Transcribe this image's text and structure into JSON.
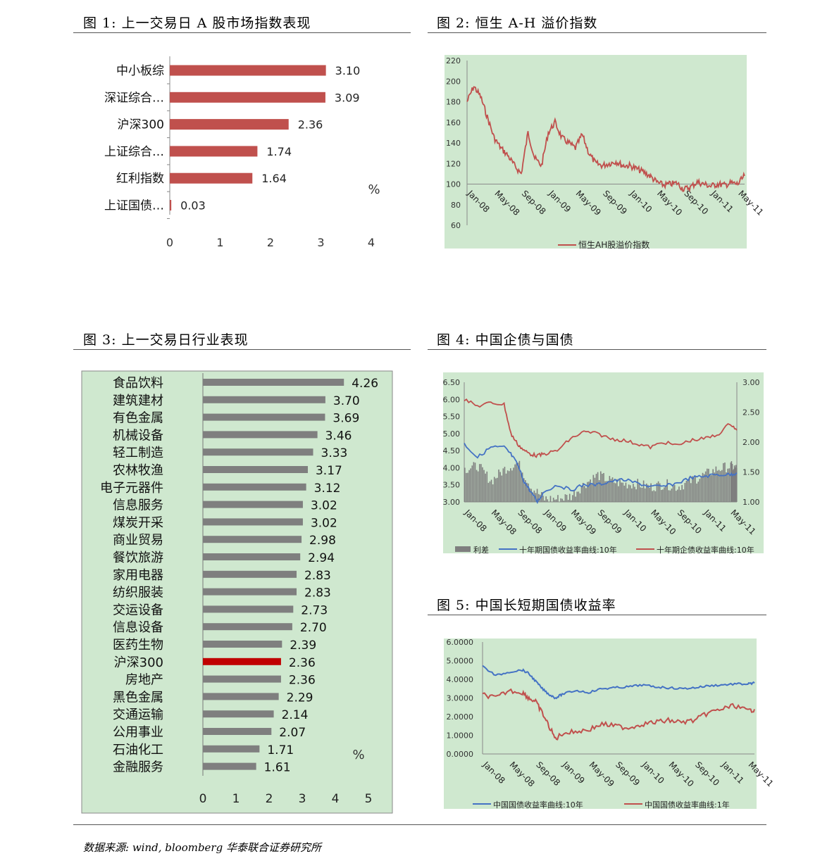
{
  "figures": {
    "fig1_title": "图 1: 上一交易日 A 股市场指数表现",
    "fig2_title": "图 2: 恒生 A-H 溢价指数",
    "fig3_title": "图 3: 上一交易日行业表现",
    "fig4_title": "图 4: 中国企债与国债",
    "fig5_title": "图 5: 中国长短期国债收益率"
  },
  "source": "数据来源: wind, bloomberg 华泰联合证券研究所",
  "colors": {
    "bar_red": "#c0504d",
    "bar_gray": "#7f7f7f",
    "highlight_red": "#c00000",
    "panel_green": "#cfe8cf",
    "line_blue": "#4472c4",
    "line_red": "#c0504d"
  },
  "chart_data": [
    {
      "id": "fig1",
      "type": "bar",
      "orientation": "horizontal",
      "categories": [
        "中小板综",
        "深证综合…",
        "沪深300",
        "上证综合…",
        "红利指数",
        "上证国债…"
      ],
      "values": [
        3.1,
        3.09,
        2.36,
        1.74,
        1.64,
        0.03
      ],
      "value_labels": [
        "3.10",
        "3.09",
        "2.36",
        "1.74",
        "1.64",
        "0.03"
      ],
      "unit": "%",
      "xlim": [
        0,
        4
      ],
      "xticks": [
        "0",
        "1",
        "2",
        "3",
        "4"
      ],
      "grid": false
    },
    {
      "id": "fig2",
      "type": "line",
      "x_ticks": [
        "Jan-08",
        "May-08",
        "Sep-08",
        "Jan-09",
        "May-09",
        "Sep-09",
        "Jan-10",
        "May-10",
        "Sep-10",
        "Jan-11",
        "May-11"
      ],
      "ylim": [
        60,
        220
      ],
      "yticks": [
        "60",
        "80",
        "100",
        "120",
        "140",
        "160",
        "180",
        "200",
        "220"
      ],
      "series": [
        {
          "name": "恒生AH股溢价指数",
          "x": [
            "Jan-08",
            "Feb-08",
            "Mar-08",
            "Apr-08",
            "May-08",
            "Jun-08",
            "Jul-08",
            "Aug-08",
            "Sep-08",
            "Oct-08",
            "Nov-08",
            "Dec-08",
            "Jan-09",
            "Feb-09",
            "Mar-09",
            "Apr-09",
            "May-09",
            "Jun-09",
            "Jul-09",
            "Aug-09",
            "Sep-09",
            "Oct-09",
            "Nov-09",
            "Dec-09",
            "Jan-10",
            "Feb-10",
            "Mar-10",
            "Apr-10",
            "May-10",
            "Jun-10",
            "Jul-10",
            "Aug-10",
            "Sep-10",
            "Oct-10",
            "Nov-10",
            "Dec-10",
            "Jan-11",
            "Feb-11",
            "Mar-11",
            "Apr-11",
            "May-11",
            "Jun-11"
          ],
          "values": [
            180,
            195,
            185,
            165,
            145,
            135,
            128,
            118,
            110,
            150,
            125,
            118,
            150,
            160,
            145,
            140,
            135,
            148,
            130,
            120,
            118,
            120,
            122,
            118,
            118,
            115,
            112,
            108,
            102,
            99,
            100,
            101,
            95,
            97,
            102,
            100,
            98,
            100,
            99,
            101,
            100,
            108
          ]
        }
      ],
      "legend": "bottom"
    },
    {
      "id": "fig3",
      "type": "bar",
      "orientation": "horizontal",
      "categories": [
        "食品饮料",
        "建筑建材",
        "有色金属",
        "机械设备",
        "轻工制造",
        "农林牧渔",
        "电子元器件",
        "信息服务",
        "煤炭开采",
        "商业贸易",
        "餐饮旅游",
        "家用电器",
        "纺织服装",
        "交运设备",
        "信息设备",
        "医药生物",
        "沪深300",
        "房地产",
        "黑色金属",
        "交通运输",
        "公用事业",
        "石油化工",
        "金融服务"
      ],
      "values": [
        4.26,
        3.7,
        3.69,
        3.46,
        3.33,
        3.17,
        3.12,
        3.02,
        3.02,
        2.98,
        2.94,
        2.83,
        2.83,
        2.73,
        2.7,
        2.39,
        2.36,
        2.36,
        2.29,
        2.14,
        2.07,
        1.71,
        1.61
      ],
      "value_labels": [
        "4.26",
        "3.70",
        "3.69",
        "3.46",
        "3.33",
        "3.17",
        "3.12",
        "3.02",
        "3.02",
        "2.98",
        "2.94",
        "2.83",
        "2.83",
        "2.73",
        "2.70",
        "2.39",
        "2.36",
        "2.36",
        "2.29",
        "2.14",
        "2.07",
        "1.71",
        "1.61"
      ],
      "highlight": "沪深300",
      "unit": "%",
      "xlim": [
        0,
        5
      ],
      "xticks": [
        "0",
        "1",
        "2",
        "3",
        "4",
        "5"
      ],
      "grid": false
    },
    {
      "id": "fig4",
      "type": "line",
      "x_ticks": [
        "Jan-08",
        "May-08",
        "Sep-08",
        "Jan-09",
        "May-09",
        "Sep-09",
        "Jan-10",
        "May-10",
        "Sep-10",
        "Jan-11",
        "May-11"
      ],
      "ylim_left": [
        3.0,
        6.5
      ],
      "yticks_left": [
        "3.00",
        "3.50",
        "4.00",
        "4.50",
        "5.00",
        "5.50",
        "6.00",
        "6.50"
      ],
      "ylim_right": [
        1.0,
        3.0
      ],
      "yticks_right": [
        "1.00",
        "1.50",
        "2.00",
        "2.50",
        "3.00"
      ],
      "series": [
        {
          "name": "利差",
          "axis": "right",
          "kind": "bar",
          "x": [
            "Jan-08",
            "Mar-08",
            "May-08",
            "Jul-08",
            "Sep-08",
            "Nov-08",
            "Jan-09",
            "Mar-09",
            "May-09",
            "Jul-09",
            "Sep-09",
            "Nov-09",
            "Jan-10",
            "Mar-10",
            "May-10",
            "Jul-10",
            "Sep-10",
            "Nov-10",
            "Jan-11",
            "Mar-11",
            "May-11",
            "Jun-11"
          ],
          "values": [
            1.55,
            1.6,
            1.35,
            1.55,
            1.65,
            1.25,
            1.05,
            1.05,
            1.1,
            1.3,
            1.45,
            1.35,
            1.3,
            1.3,
            1.25,
            1.3,
            1.25,
            1.35,
            1.45,
            1.55,
            1.6,
            1.55
          ]
        },
        {
          "name": "十年期国债收益率曲线:10年",
          "axis": "left",
          "x": [
            "Jan-08",
            "Mar-08",
            "May-08",
            "Jul-08",
            "Aug-08",
            "Sep-08",
            "Oct-08",
            "Nov-08",
            "Dec-08",
            "Jan-09",
            "Mar-09",
            "May-09",
            "Jul-09",
            "Sep-09",
            "Nov-09",
            "Jan-10",
            "Mar-10",
            "May-10",
            "Jul-10",
            "Sep-10",
            "Nov-10",
            "Jan-11",
            "Mar-11",
            "May-11",
            "Jun-11"
          ],
          "values": [
            4.7,
            4.3,
            4.6,
            4.6,
            4.4,
            4.1,
            3.6,
            3.3,
            3.0,
            3.3,
            3.5,
            3.35,
            3.5,
            3.5,
            3.6,
            3.65,
            3.55,
            3.45,
            3.45,
            3.55,
            3.7,
            3.75,
            3.8,
            3.8,
            3.85
          ]
        },
        {
          "name": "十年期企债收益率曲线:10年",
          "axis": "left",
          "x": [
            "Jan-08",
            "Mar-08",
            "May-08",
            "Jul-08",
            "Aug-08",
            "Sep-08",
            "Oct-08",
            "Nov-08",
            "Dec-08",
            "Jan-09",
            "Mar-09",
            "May-09",
            "Jul-09",
            "Sep-09",
            "Nov-09",
            "Jan-10",
            "Mar-10",
            "May-10",
            "Jul-10",
            "Sep-10",
            "Nov-10",
            "Jan-11",
            "Mar-11",
            "May-11",
            "Jun-11"
          ],
          "values": [
            6.0,
            5.8,
            5.9,
            5.85,
            5.0,
            4.7,
            4.5,
            4.4,
            4.35,
            4.4,
            4.5,
            4.85,
            5.05,
            5.0,
            4.85,
            4.8,
            4.7,
            4.6,
            4.75,
            4.65,
            4.8,
            4.85,
            4.95,
            5.3,
            5.1
          ]
        }
      ],
      "legend": "bottom"
    },
    {
      "id": "fig5",
      "type": "line",
      "x_ticks": [
        "Jan-08",
        "May-08",
        "Sep-08",
        "Jan-09",
        "May-09",
        "Sep-09",
        "Jan-10",
        "May-10",
        "Sep-10",
        "Jan-11",
        "May-11"
      ],
      "ylim": [
        0,
        6
      ],
      "yticks": [
        "0.0000",
        "1.0000",
        "2.0000",
        "3.0000",
        "4.0000",
        "5.0000",
        "6.0000"
      ],
      "series": [
        {
          "name": "中国国债收益率曲线:10年",
          "x": [
            "Jan-08",
            "Mar-08",
            "May-08",
            "Jul-08",
            "Aug-08",
            "Sep-08",
            "Oct-08",
            "Nov-08",
            "Dec-08",
            "Jan-09",
            "Mar-09",
            "May-09",
            "Jul-09",
            "Sep-09",
            "Nov-09",
            "Jan-10",
            "Mar-10",
            "May-10",
            "Jul-10",
            "Sep-10",
            "Nov-10",
            "Jan-11",
            "Mar-11",
            "May-11",
            "Jun-11"
          ],
          "values": [
            4.7,
            4.2,
            4.4,
            4.5,
            4.3,
            3.9,
            3.5,
            3.2,
            3.0,
            3.2,
            3.4,
            3.3,
            3.5,
            3.55,
            3.6,
            3.7,
            3.6,
            3.55,
            3.5,
            3.55,
            3.65,
            3.7,
            3.75,
            3.75,
            3.8
          ]
        },
        {
          "name": "中国国债收益率曲线:1年",
          "x": [
            "Jan-08",
            "Mar-08",
            "May-08",
            "Jul-08",
            "Aug-08",
            "Sep-08",
            "Oct-08",
            "Nov-08",
            "Dec-08",
            "Jan-09",
            "Mar-09",
            "May-09",
            "Jul-09",
            "Sep-09",
            "Nov-09",
            "Jan-10",
            "Mar-10",
            "May-10",
            "Jul-10",
            "Sep-10",
            "Nov-10",
            "Jan-11",
            "Mar-11",
            "May-11",
            "Jun-11"
          ],
          "values": [
            3.2,
            3.0,
            3.4,
            3.3,
            3.0,
            2.8,
            2.2,
            1.5,
            0.8,
            1.1,
            1.2,
            1.3,
            1.6,
            1.5,
            1.4,
            1.6,
            1.7,
            1.8,
            1.7,
            1.8,
            2.2,
            2.4,
            2.6,
            2.3,
            2.4
          ]
        }
      ],
      "legend": "bottom"
    }
  ]
}
